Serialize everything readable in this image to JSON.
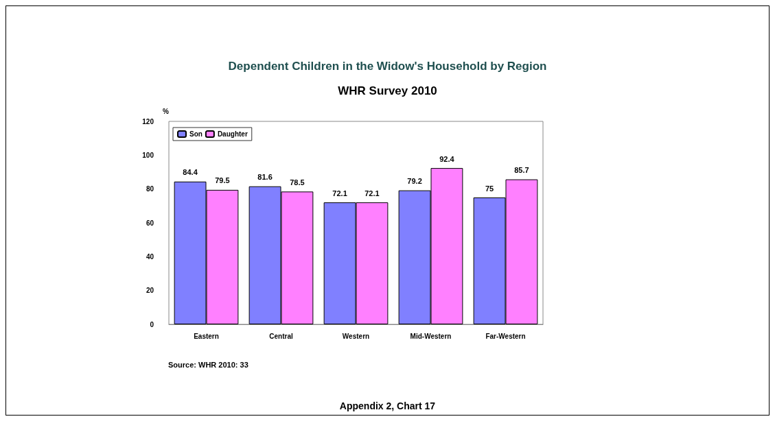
{
  "chart_data": {
    "type": "bar",
    "title": "Dependent Children in the Widow's Household by Region",
    "subtitle": "WHR Survey 2010",
    "ylabel": "%",
    "categories": [
      "Eastern",
      "Central",
      "Western",
      "Mid-Western",
      "Far-Western"
    ],
    "series": [
      {
        "name": "Son",
        "color": "#8080ff",
        "values": [
          84.4,
          81.6,
          72.1,
          79.2,
          75
        ]
      },
      {
        "name": "Daughter",
        "color": "#ff80ff",
        "values": [
          79.5,
          78.5,
          72.1,
          92.4,
          85.7
        ]
      }
    ],
    "ylim": [
      0,
      120
    ],
    "yticks": [
      0,
      20,
      40,
      60,
      80,
      100,
      120
    ],
    "grid": false,
    "legend": "top left",
    "data_labels": true,
    "annotations": [
      "Source: WHR 2010: 33",
      "Appendix 2, Chart 17"
    ]
  }
}
